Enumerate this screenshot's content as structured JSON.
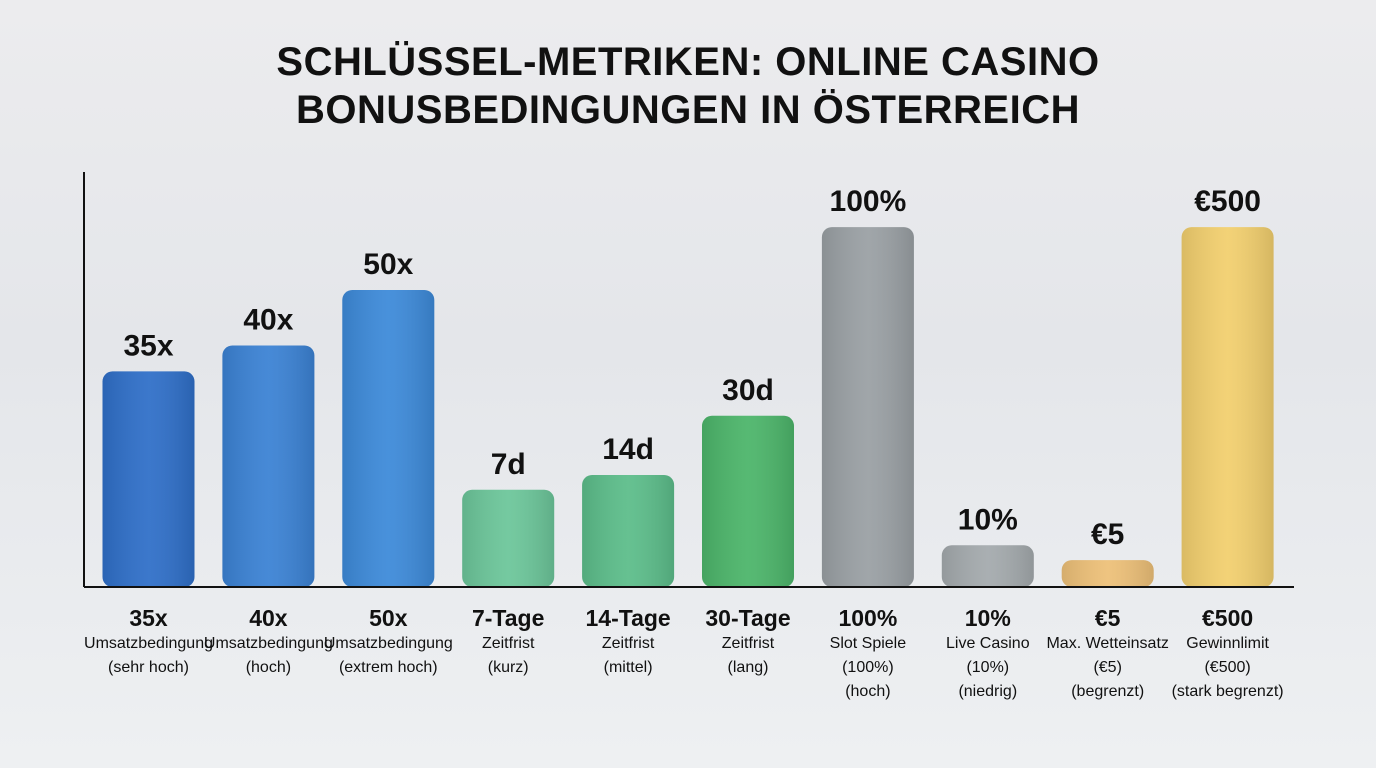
{
  "title": {
    "line1": "SCHLÜSSEL-METRIKEN: ONLINE CASINO",
    "line2": "BONUSBEDINGUNGEN IN ÖSTERREICH"
  },
  "chart_data": {
    "type": "bar",
    "title": "SCHLÜSSEL-METRIKEN: ONLINE CASINO BONUSBEDINGUNGEN IN ÖSTERREICH",
    "xlabel": "",
    "ylabel": "",
    "grid": false,
    "legend": "none",
    "categories": [
      {
        "main": "35x",
        "sub": "Umsatzbedingung\n(sehr hoch)"
      },
      {
        "main": "40x",
        "sub": "Umsatzbedingung\n(hoch)"
      },
      {
        "main": "50x",
        "sub": "Umsatzbedingung\n(extrem hoch)"
      },
      {
        "main": "7-Tage",
        "sub": "Zeitfrist\n(kurz)"
      },
      {
        "main": "14-Tage",
        "sub": "Zeitfrist\n(mittel)"
      },
      {
        "main": "30-Tage",
        "sub": "Zeitfrist\n(lang)"
      },
      {
        "main": "100%",
        "sub": "Slot Spiele\n(100%)\n(hoch)"
      },
      {
        "main": "10%",
        "sub": "Live Casino\n(10%)\n(niedrig)"
      },
      {
        "main": "€5",
        "sub": "Max. Wetteinsatz\n(€5)\n(begrenzt)"
      },
      {
        "main": "€500",
        "sub": "Gewinnlimit\n(€500)\n(stark begrenzt)"
      }
    ],
    "data_labels": [
      "35x",
      "40x",
      "50x",
      "7d",
      "14d",
      "30d",
      "100%",
      "10%",
      "€5",
      "€500"
    ],
    "relative_heights": [
      0.58,
      0.65,
      0.8,
      0.26,
      0.3,
      0.46,
      0.97,
      0.11,
      0.07,
      0.97
    ],
    "colors": [
      "#2f6fc8",
      "#3b82d4",
      "#3d8ad9",
      "#6cc69a",
      "#5cbd8a",
      "#4cb56a",
      "#9aa0a4",
      "#a4aaad",
      "#edc078",
      "#f2cf6e"
    ]
  }
}
